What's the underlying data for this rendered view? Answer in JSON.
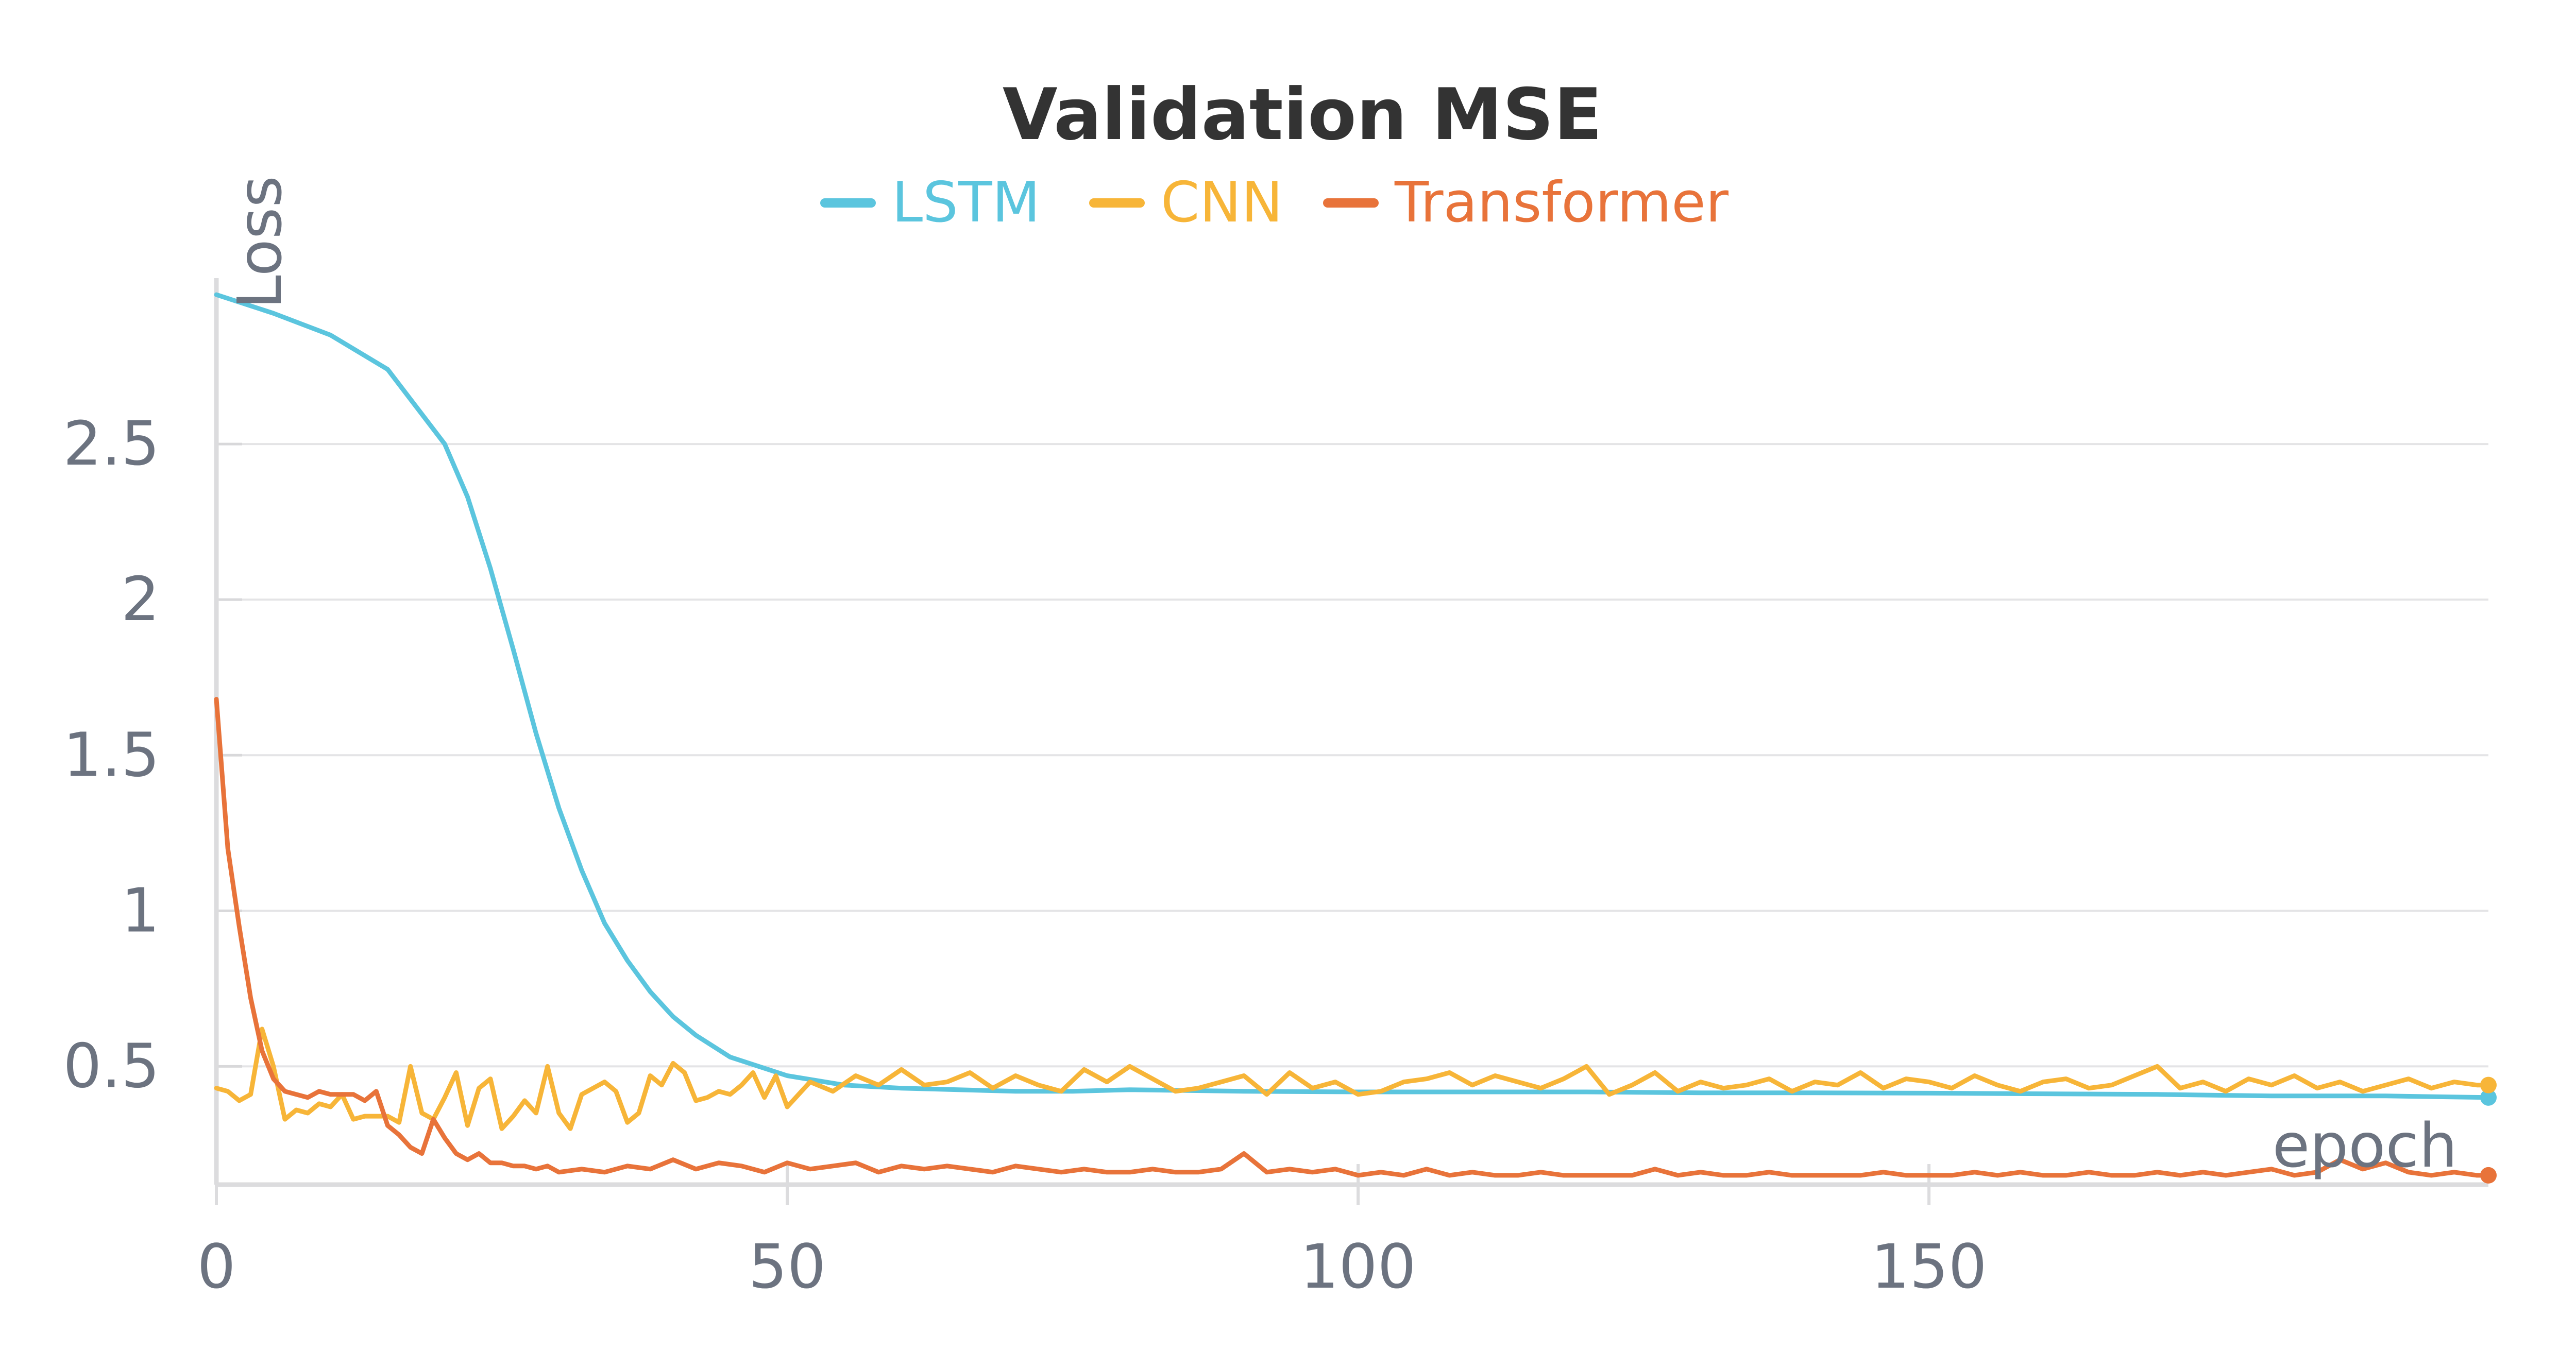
{
  "chart_data": {
    "type": "line",
    "title": "Validation MSE",
    "xlabel": "epoch",
    "ylabel": "Loss",
    "xlim": [
      0,
      199
    ],
    "ylim": [
      0.12,
      3.0
    ],
    "xticks": [
      0,
      50,
      100,
      150
    ],
    "yticks": [
      0.5,
      1,
      1.5,
      2,
      2.5
    ],
    "xtick_labels": [
      "0",
      "50",
      "100",
      "150"
    ],
    "ytick_labels": [
      "0.5",
      "1",
      "1.5",
      "2",
      "2.5"
    ],
    "grid": "horizontal",
    "legend": "top-center",
    "series": [
      {
        "name": "LSTM",
        "color": "#5bc5de",
        "x": [
          0,
          5,
          10,
          15,
          20,
          22,
          24,
          26,
          28,
          30,
          32,
          34,
          36,
          38,
          40,
          42,
          45,
          50,
          55,
          60,
          65,
          70,
          75,
          80,
          90,
          100,
          110,
          120,
          130,
          140,
          150,
          160,
          170,
          180,
          190,
          199
        ],
        "y": [
          2.98,
          2.92,
          2.85,
          2.74,
          2.5,
          2.33,
          2.1,
          1.84,
          1.57,
          1.33,
          1.13,
          0.96,
          0.84,
          0.74,
          0.66,
          0.6,
          0.53,
          0.47,
          0.44,
          0.43,
          0.425,
          0.42,
          0.42,
          0.425,
          0.42,
          0.418,
          0.418,
          0.418,
          0.415,
          0.415,
          0.414,
          0.412,
          0.41,
          0.405,
          0.405,
          0.4
        ]
      },
      {
        "name": "CNN",
        "color": "#f7b538",
        "x": [
          0,
          1,
          2,
          3,
          4,
          5,
          6,
          7,
          8,
          9,
          10,
          11,
          12,
          13,
          14,
          15,
          16,
          17,
          18,
          19,
          20,
          21,
          22,
          23,
          24,
          25,
          26,
          27,
          28,
          29,
          30,
          31,
          32,
          33,
          34,
          35,
          36,
          37,
          38,
          39,
          40,
          41,
          42,
          43,
          44,
          45,
          46,
          47,
          48,
          49,
          50,
          52,
          54,
          56,
          58,
          60,
          62,
          64,
          66,
          68,
          70,
          72,
          74,
          76,
          78,
          80,
          82,
          84,
          86,
          88,
          90,
          92,
          94,
          96,
          98,
          100,
          102,
          104,
          106,
          108,
          110,
          112,
          114,
          116,
          118,
          120,
          122,
          124,
          126,
          128,
          130,
          132,
          134,
          136,
          138,
          140,
          142,
          144,
          146,
          148,
          150,
          152,
          154,
          156,
          158,
          160,
          162,
          164,
          166,
          168,
          170,
          172,
          174,
          176,
          178,
          180,
          182,
          184,
          186,
          188,
          190,
          192,
          194,
          196,
          198,
          199
        ],
        "y": [
          0.43,
          0.42,
          0.39,
          0.41,
          0.62,
          0.5,
          0.33,
          0.36,
          0.35,
          0.38,
          0.37,
          0.41,
          0.33,
          0.34,
          0.34,
          0.34,
          0.32,
          0.5,
          0.35,
          0.33,
          0.4,
          0.48,
          0.31,
          0.43,
          0.46,
          0.3,
          0.34,
          0.39,
          0.35,
          0.5,
          0.35,
          0.3,
          0.41,
          0.43,
          0.45,
          0.42,
          0.32,
          0.35,
          0.47,
          0.44,
          0.51,
          0.48,
          0.39,
          0.4,
          0.42,
          0.41,
          0.44,
          0.48,
          0.4,
          0.47,
          0.37,
          0.45,
          0.42,
          0.47,
          0.44,
          0.49,
          0.44,
          0.45,
          0.48,
          0.43,
          0.47,
          0.44,
          0.42,
          0.49,
          0.45,
          0.5,
          0.46,
          0.42,
          0.43,
          0.45,
          0.47,
          0.41,
          0.48,
          0.43,
          0.45,
          0.41,
          0.42,
          0.45,
          0.46,
          0.48,
          0.44,
          0.47,
          0.45,
          0.43,
          0.46,
          0.5,
          0.41,
          0.44,
          0.48,
          0.42,
          0.45,
          0.43,
          0.44,
          0.46,
          0.42,
          0.45,
          0.44,
          0.48,
          0.43,
          0.46,
          0.45,
          0.43,
          0.47,
          0.44,
          0.42,
          0.45,
          0.46,
          0.43,
          0.44,
          0.47,
          0.5,
          0.43,
          0.45,
          0.42,
          0.46,
          0.44,
          0.47,
          0.43,
          0.45,
          0.42,
          0.44,
          0.46,
          0.43,
          0.45,
          0.44,
          0.44
        ]
      },
      {
        "name": "Transformer",
        "color": "#e8733a",
        "x": [
          0,
          1,
          2,
          3,
          4,
          5,
          6,
          7,
          8,
          9,
          10,
          11,
          12,
          13,
          14,
          15,
          16,
          17,
          18,
          19,
          20,
          21,
          22,
          23,
          24,
          25,
          26,
          27,
          28,
          29,
          30,
          32,
          34,
          36,
          38,
          40,
          42,
          44,
          46,
          48,
          50,
          52,
          54,
          56,
          58,
          60,
          62,
          64,
          66,
          68,
          70,
          72,
          74,
          76,
          78,
          80,
          82,
          84,
          86,
          88,
          90,
          92,
          94,
          96,
          98,
          100,
          102,
          104,
          106,
          108,
          110,
          112,
          114,
          116,
          118,
          120,
          122,
          124,
          126,
          128,
          130,
          132,
          134,
          136,
          138,
          140,
          142,
          144,
          146,
          148,
          150,
          152,
          154,
          156,
          158,
          160,
          162,
          164,
          166,
          168,
          170,
          172,
          174,
          176,
          178,
          180,
          182,
          184,
          186,
          188,
          190,
          192,
          194,
          196,
          198,
          199
        ],
        "y": [
          1.68,
          1.2,
          0.95,
          0.72,
          0.55,
          0.46,
          0.42,
          0.41,
          0.4,
          0.42,
          0.41,
          0.41,
          0.41,
          0.39,
          0.42,
          0.31,
          0.28,
          0.24,
          0.22,
          0.33,
          0.27,
          0.22,
          0.2,
          0.22,
          0.19,
          0.19,
          0.18,
          0.18,
          0.17,
          0.18,
          0.16,
          0.17,
          0.16,
          0.18,
          0.17,
          0.2,
          0.17,
          0.19,
          0.18,
          0.16,
          0.19,
          0.17,
          0.18,
          0.19,
          0.16,
          0.18,
          0.17,
          0.18,
          0.17,
          0.16,
          0.18,
          0.17,
          0.16,
          0.17,
          0.16,
          0.16,
          0.17,
          0.16,
          0.16,
          0.17,
          0.22,
          0.16,
          0.17,
          0.16,
          0.17,
          0.15,
          0.16,
          0.15,
          0.17,
          0.15,
          0.16,
          0.15,
          0.15,
          0.16,
          0.15,
          0.15,
          0.15,
          0.15,
          0.17,
          0.15,
          0.16,
          0.15,
          0.15,
          0.16,
          0.15,
          0.15,
          0.15,
          0.15,
          0.16,
          0.15,
          0.15,
          0.15,
          0.16,
          0.15,
          0.16,
          0.15,
          0.15,
          0.16,
          0.15,
          0.15,
          0.16,
          0.15,
          0.16,
          0.15,
          0.16,
          0.17,
          0.15,
          0.16,
          0.2,
          0.17,
          0.19,
          0.16,
          0.15,
          0.16,
          0.15,
          0.15
        ]
      }
    ]
  }
}
